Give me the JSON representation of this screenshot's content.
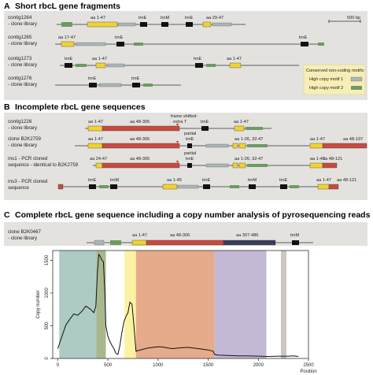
{
  "colors": {
    "panel_bg": "#e4e2df",
    "legend_bg": "#f6eeb6",
    "exon_yellow": "#f2d22e",
    "exon_red": "#c84a40",
    "exon_navy": "#3a3c5c",
    "trn_black": "#111111",
    "motif1": "#a9b6b8",
    "motif2": "#6d9a64",
    "line": "#333333",
    "red_mark": "#d21f1f"
  },
  "panelA": {
    "letter": "A",
    "title": "Short rbcL gene fragments",
    "scale_label": "500 bp",
    "rows": [
      {
        "name": "contig1264",
        "source": "- clone library",
        "labels": [
          "aa 1-47",
          "trnE",
          "trnM",
          "trnE",
          "aa 29-47"
        ]
      },
      {
        "name": "contig1265",
        "source": "- clone library",
        "labels": [
          "aa 17-47",
          "trnE",
          "trnE"
        ]
      },
      {
        "name": "contig1273",
        "source": "- clone library",
        "labels": [
          "trnE",
          "aa 1-47",
          "trnE",
          "aa 1-47"
        ]
      },
      {
        "name": "contig1276",
        "source": "- clone library",
        "labels": [
          "trnE",
          "trnE"
        ]
      }
    ],
    "legend": {
      "title": "Conserved non-coding motifs:",
      "items": [
        "High copy motif 1",
        "High copy motif 2"
      ]
    }
  },
  "panelB": {
    "letter": "B",
    "title": "Incomplete rbcL gene sequences",
    "annotations": {
      "frame_shift_line1": "frame shifted:",
      "frame_shift_line2": "extra T"
    },
    "rows": [
      {
        "name": "contig1226",
        "source": "- clone library",
        "labels": [
          "aa 1-47",
          "aa 48-305",
          "trnE",
          "aa 1-47",
          "aa 1-47"
        ]
      },
      {
        "name": "clone B2K2759",
        "source": "- clone library",
        "labels": [
          "aa 1-47",
          "aa 48-305",
          "partial",
          "trnE",
          "aa 1-26, 32-47",
          "aa 1-47",
          "aa 48-197"
        ]
      },
      {
        "name": "ms1 - PCR cloned",
        "source": "sequence - identical to B2K2759",
        "labels": [
          "aa 24-47",
          "aa 48-305",
          "partial",
          "trnE",
          "aa 1-26, 32-47",
          "aa 1-47",
          "aa 48-121"
        ]
      },
      {
        "name": "ms3 - PCR cloned",
        "source": "sequence",
        "labels": [
          "trnE",
          "trnM",
          "aa 1-45",
          "trnE",
          "trnM",
          "trnE",
          "aa 1-47",
          "aa 48-121"
        ]
      }
    ]
  },
  "panelC": {
    "letter": "C",
    "title": "Complete rbcL gene sequence including a copy number analysis of pyrosequencing reads",
    "clone": {
      "name": "clone B2K0467",
      "source": "- clone library",
      "labels": [
        "aa 1-47",
        "aa 48-306",
        "aa 307-486",
        "trnM"
      ]
    }
  },
  "chart_data": {
    "type": "line",
    "title": "",
    "xlabel": "Position",
    "ylabel": "Copy number",
    "xlim": [
      -50,
      2500
    ],
    "ylim": [
      0,
      1650
    ],
    "xticks": [
      0,
      500,
      1000,
      1500,
      2000,
      2500
    ],
    "yticks": [
      0,
      500,
      1000,
      1500
    ],
    "bands": [
      {
        "x0": 15,
        "x1": 385,
        "color": "#aecac4"
      },
      {
        "x0": 385,
        "x1": 480,
        "color": "#a9b78f"
      },
      {
        "x0": 665,
        "x1": 780,
        "color": "#fbf2a4"
      },
      {
        "x0": 780,
        "x1": 1565,
        "color": "#e6ab8b"
      },
      {
        "x0": 1565,
        "x1": 2080,
        "color": "#c3b8d6"
      },
      {
        "x0": 2225,
        "x1": 2280,
        "color": "#cbc6bf"
      }
    ],
    "series": [
      {
        "x": [
          0,
          40,
          80,
          120,
          160,
          200,
          240,
          280,
          320,
          360,
          380,
          395,
          410,
          425,
          440,
          455,
          470,
          480,
          500,
          520,
          540,
          560,
          580,
          600,
          620,
          640,
          660,
          680,
          700,
          720,
          740,
          760,
          780,
          800,
          850,
          900,
          950,
          1000,
          1050,
          1100,
          1150,
          1200,
          1250,
          1300,
          1350,
          1400,
          1450,
          1500,
          1550,
          1565,
          1600,
          1700,
          1800,
          1900,
          2000,
          2100,
          2200,
          2300,
          2350,
          2400
        ],
        "y": [
          150,
          330,
          510,
          600,
          680,
          660,
          720,
          800,
          760,
          700,
          800,
          1300,
          1590,
          1560,
          1500,
          1480,
          1000,
          500,
          340,
          260,
          200,
          150,
          80,
          60,
          200,
          400,
          560,
          640,
          700,
          860,
          830,
          500,
          110,
          120,
          140,
          160,
          170,
          180,
          175,
          160,
          150,
          160,
          165,
          170,
          160,
          150,
          140,
          130,
          110,
          60,
          50,
          45,
          40,
          40,
          35,
          30,
          35,
          35,
          40,
          30
        ]
      }
    ]
  }
}
